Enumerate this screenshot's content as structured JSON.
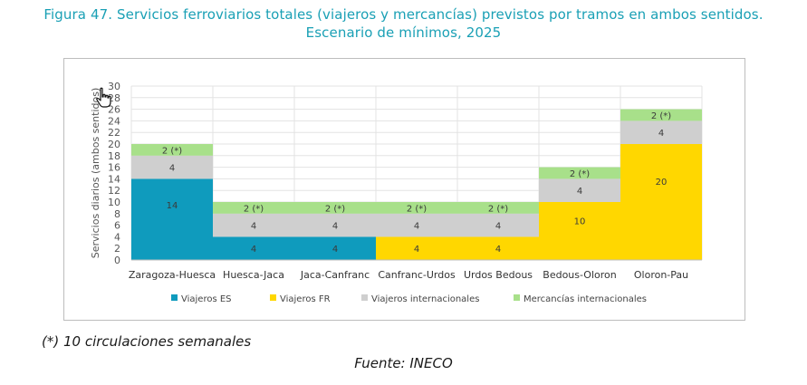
{
  "figure": {
    "title_line1": "Figura 47. Servicios ferroviarios totales (viajeros y mercancías) previstos por tramos en ambos sentidos.",
    "title_line2": "Escenario de mínimos, 2025",
    "footnote": "(*) 10 circulaciones semanales",
    "source": "Fuente: INECO"
  },
  "chart_data": {
    "type": "bar",
    "stacked": true,
    "categories": [
      "Zaragoza-Huesca",
      "Huesca-Jaca",
      "Jaca-Canfranc",
      "Canfranc-Urdos",
      "Urdos Bedous",
      "Bedous-Oloron",
      "Oloron-Pau"
    ],
    "series": [
      {
        "name": "Viajeros ES",
        "color": "#0f9bbd",
        "values": [
          14,
          4,
          4,
          0,
          0,
          0,
          0
        ],
        "labels": [
          "14",
          "4",
          "4",
          "",
          "",
          "",
          ""
        ]
      },
      {
        "name": "Viajeros FR",
        "color": "#ffd700",
        "values": [
          0,
          0,
          0,
          4,
          4,
          10,
          20
        ],
        "labels": [
          "",
          "",
          "",
          "4",
          "4",
          "10",
          "20"
        ]
      },
      {
        "name": "Viajeros internacionales",
        "color": "#cfcfcf",
        "values": [
          4,
          4,
          4,
          4,
          4,
          4,
          4
        ],
        "labels": [
          "4",
          "4",
          "4",
          "4",
          "4",
          "4",
          "4"
        ]
      },
      {
        "name": "Mercancías internacionales",
        "color": "#a8e08a",
        "values": [
          2,
          2,
          2,
          2,
          2,
          2,
          2
        ],
        "labels": [
          "2 (*)",
          "2 (*)",
          "2 (*)",
          "2 (*)",
          "2 (*)",
          "2 (*)",
          "2 (*)"
        ]
      }
    ],
    "ylabel": "Servicios diarios (ambos sentidos)",
    "ylim": [
      0,
      30
    ],
    "yticks": [
      0,
      2,
      4,
      6,
      8,
      10,
      12,
      14,
      16,
      18,
      20,
      22,
      24,
      26,
      28,
      30
    ],
    "grid": true,
    "legend_position": "bottom"
  }
}
